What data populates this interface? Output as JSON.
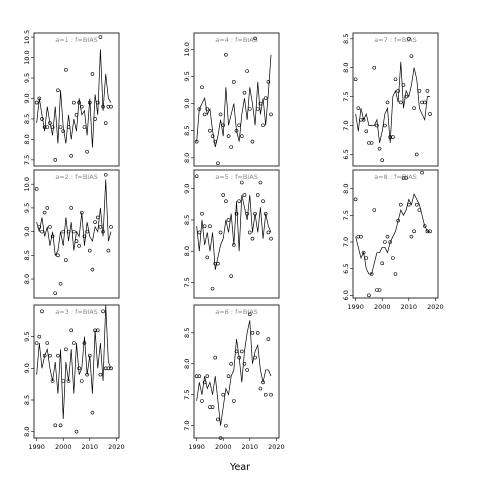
{
  "figure": {
    "xlabel": "Year"
  },
  "chart_data": [
    {
      "type": "scatter",
      "title": "a=1 : f=BIAS",
      "xlim": [
        1989,
        2021
      ],
      "ylim": [
        7.35,
        10.6
      ],
      "x_ticks": [
        1990,
        2000,
        2010,
        2020
      ],
      "y_ticks": [
        "7.5",
        "8.0",
        "8.5",
        "9.0",
        "9.5",
        "10.0",
        "10.5"
      ],
      "x": [
        1990,
        1991,
        1992,
        1993,
        1994,
        1995,
        1996,
        1997,
        1998,
        1999,
        2000,
        2001,
        2002,
        2003,
        2004,
        2005,
        2006,
        2007,
        2008,
        2009,
        2010,
        2011,
        2012,
        2013,
        2014,
        2015,
        2016,
        2017,
        2018
      ],
      "points": [
        8.9,
        9.0,
        8.5,
        8.3,
        8.3,
        8.4,
        8.3,
        7.5,
        9.2,
        8.3,
        8.2,
        9.7,
        8.3,
        7.6,
        8.9,
        8.6,
        8.9,
        8.8,
        8.3,
        7.7,
        8.9,
        9.6,
        8.5,
        8.9,
        10.5,
        8.8,
        8.4,
        8.8,
        8.8
      ],
      "line": [
        8.4,
        9.0,
        8.6,
        8.2,
        8.8,
        8.4,
        8.1,
        8.8,
        7.9,
        9.2,
        8.3,
        7.9,
        8.6,
        8.0,
        8.5,
        8.2,
        9.0,
        8.6,
        8.7,
        8.1,
        9.0,
        7.8,
        9.1,
        8.6,
        10.2,
        8.7,
        9.6,
        9.0,
        8.9
      ]
    },
    {
      "type": "scatter",
      "title": "a=2 : f=BIAS",
      "xlim": [
        1989,
        2021
      ],
      "ylim": [
        7.6,
        10.3
      ],
      "x_ticks": [
        1990,
        2000,
        2010,
        2020
      ],
      "y_ticks": [
        "8.0",
        "8.5",
        "9.0",
        "9.5",
        "10.0"
      ],
      "x": [
        1990,
        1991,
        1992,
        1993,
        1994,
        1995,
        1996,
        1997,
        1998,
        1999,
        2000,
        2001,
        2002,
        2003,
        2004,
        2005,
        2006,
        2007,
        2008,
        2009,
        2010,
        2011,
        2012,
        2013,
        2014,
        2015,
        2016,
        2017,
        2018
      ],
      "points": [
        9.9,
        9.1,
        9.0,
        9.4,
        9.5,
        9.1,
        8.9,
        7.7,
        8.5,
        7.9,
        9.0,
        8.4,
        9.0,
        9.5,
        9.0,
        8.8,
        8.7,
        9.4,
        8.9,
        9.0,
        8.6,
        8.2,
        9.2,
        9.3,
        9.1,
        9.0,
        10.2,
        8.6,
        9.1
      ],
      "line": [
        9.2,
        9.0,
        9.3,
        8.9,
        9.1,
        8.7,
        9.0,
        8.5,
        8.6,
        9.0,
        8.7,
        9.3,
        8.8,
        9.2,
        8.6,
        9.0,
        8.9,
        9.4,
        8.7,
        9.2,
        8.9,
        8.8,
        9.1,
        9.0,
        9.5,
        8.9,
        10.1,
        8.8,
        9.0
      ]
    },
    {
      "type": "scatter",
      "title": "a=3 : f=BIAS",
      "xlim": [
        1989,
        2021
      ],
      "ylim": [
        7.9,
        10.0
      ],
      "x_ticks": [
        1990,
        2000,
        2010,
        2020
      ],
      "y_ticks": [
        "8.0",
        "8.5",
        "9.0",
        "9.5"
      ],
      "x": [
        1990,
        1991,
        1992,
        1993,
        1994,
        1995,
        1996,
        1997,
        1998,
        1999,
        2000,
        2001,
        2002,
        2003,
        2004,
        2005,
        2006,
        2007,
        2008,
        2009,
        2010,
        2011,
        2012,
        2013,
        2014,
        2015,
        2016,
        2017,
        2018
      ],
      "points": [
        9.4,
        9.5,
        9.9,
        9.2,
        9.4,
        9.2,
        8.8,
        8.1,
        9.2,
        8.1,
        8.8,
        9.3,
        8.8,
        9.6,
        9.4,
        8.0,
        9.0,
        8.8,
        9.4,
        8.9,
        9.2,
        8.3,
        9.6,
        9.6,
        8.9,
        9.9,
        9.0,
        9.0,
        9.0
      ],
      "line": [
        8.9,
        9.4,
        9.0,
        9.2,
        9.3,
        9.0,
        8.8,
        9.1,
        8.6,
        9.3,
        8.2,
        9.1,
        8.8,
        9.3,
        8.6,
        9.4,
        8.9,
        9.0,
        9.5,
        8.9,
        9.2,
        8.6,
        9.6,
        9.0,
        9.4,
        8.8,
        10.0,
        9.1,
        9.0
      ]
    },
    {
      "type": "scatter",
      "title": "a=4 : f=BIAS",
      "xlim": [
        1989,
        2021
      ],
      "ylim": [
        7.85,
        10.3
      ],
      "x_ticks": [
        1990,
        2000,
        2010,
        2020
      ],
      "y_ticks": [
        "8.0",
        "8.5",
        "9.0",
        "9.5",
        "10.0"
      ],
      "x": [
        1990,
        1991,
        1992,
        1993,
        1994,
        1995,
        1996,
        1997,
        1998,
        1999,
        2000,
        2001,
        2002,
        2003,
        2004,
        2005,
        2006,
        2007,
        2008,
        2009,
        2010,
        2011,
        2012,
        2013,
        2014,
        2015,
        2016,
        2017,
        2018
      ],
      "points": [
        8.3,
        8.9,
        9.3,
        8.8,
        8.9,
        8.5,
        8.4,
        8.3,
        7.9,
        8.8,
        8.6,
        9.9,
        8.4,
        8.2,
        9.4,
        8.5,
        8.6,
        8.4,
        9.2,
        9.6,
        8.9,
        8.3,
        10.2,
        8.9,
        9.0,
        8.6,
        9.1,
        9.4,
        8.8
      ],
      "line": [
        8.3,
        8.9,
        9.0,
        9.1,
        8.8,
        8.9,
        8.5,
        8.2,
        8.4,
        8.7,
        8.4,
        9.3,
        8.6,
        8.8,
        9.0,
        8.5,
        8.3,
        8.8,
        9.1,
        8.7,
        9.3,
        9.0,
        8.6,
        9.4,
        8.8,
        9.1,
        8.6,
        9.2,
        9.9
      ]
    },
    {
      "type": "scatter",
      "title": "a=5 : f=BIAS",
      "xlim": [
        1989,
        2021
      ],
      "ylim": [
        7.25,
        9.3
      ],
      "x_ticks": [
        1990,
        2000,
        2010,
        2020
      ],
      "y_ticks": [
        "7.5",
        "8.0",
        "8.5",
        "9.0"
      ],
      "x": [
        1990,
        1991,
        1992,
        1993,
        1994,
        1995,
        1996,
        1997,
        1998,
        1999,
        2000,
        2001,
        2002,
        2003,
        2004,
        2005,
        2006,
        2007,
        2008,
        2009,
        2010,
        2011,
        2012,
        2013,
        2014,
        2015,
        2016,
        2017,
        2018
      ],
      "points": [
        9.2,
        8.3,
        8.6,
        8.4,
        7.9,
        8.4,
        7.4,
        7.8,
        7.8,
        8.3,
        8.9,
        8.8,
        8.5,
        7.6,
        8.1,
        8.6,
        8.8,
        9.1,
        8.9,
        8.6,
        8.3,
        8.2,
        8.6,
        8.9,
        9.1,
        8.8,
        8.6,
        8.3,
        8.2
      ],
      "line": [
        8.4,
        8.0,
        8.5,
        8.1,
        8.3,
        8.0,
        8.3,
        7.7,
        7.9,
        8.1,
        8.2,
        8.5,
        8.3,
        8.6,
        8.1,
        8.8,
        8.0,
        8.9,
        8.7,
        8.5,
        8.9,
        8.3,
        8.6,
        8.3,
        8.7,
        8.2,
        8.6,
        8.4,
        8.3
      ]
    },
    {
      "type": "scatter",
      "title": "a=6 : f=BIAS",
      "xlim": [
        1989,
        2021
      ],
      "ylim": [
        6.8,
        8.95
      ],
      "x_ticks": [
        1990,
        2000,
        2010,
        2020
      ],
      "y_ticks": [
        "7.0",
        "7.5",
        "8.0",
        "8.5"
      ],
      "x": [
        1990,
        1991,
        1992,
        1993,
        1994,
        1995,
        1996,
        1997,
        1998,
        1999,
        2000,
        2001,
        2002,
        2003,
        2004,
        2005,
        2006,
        2007,
        2008,
        2009,
        2010,
        2011,
        2012,
        2013,
        2014,
        2015,
        2016,
        2017,
        2018
      ],
      "points": [
        7.8,
        7.8,
        7.4,
        7.7,
        7.8,
        7.3,
        7.3,
        8.1,
        7.1,
        6.8,
        7.5,
        7.0,
        7.8,
        8.0,
        7.4,
        8.2,
        8.1,
        8.2,
        8.0,
        7.9,
        8.8,
        8.5,
        8.1,
        8.5,
        7.6,
        7.7,
        7.5,
        8.4,
        7.5
      ],
      "line": [
        7.4,
        7.7,
        7.5,
        7.8,
        7.6,
        7.7,
        7.5,
        7.8,
        7.4,
        7.0,
        7.3,
        7.6,
        7.5,
        7.8,
        7.9,
        8.4,
        8.1,
        7.7,
        8.2,
        8.5,
        8.7,
        8.0,
        8.2,
        8.3,
        7.9,
        7.7,
        7.9,
        7.9,
        7.8
      ]
    },
    {
      "type": "scatter",
      "title": "a=7 : f=BIAS",
      "xlim": [
        1989,
        2021
      ],
      "ylim": [
        6.3,
        8.6
      ],
      "x_ticks": [
        1990,
        2000,
        2010,
        2020
      ],
      "y_ticks": [
        "6.5",
        "7.0",
        "7.5",
        "8.0",
        "8.5"
      ],
      "x": [
        1990,
        1991,
        1992,
        1993,
        1994,
        1995,
        1996,
        1997,
        1998,
        1999,
        2000,
        2001,
        2002,
        2003,
        2004,
        2005,
        2006,
        2007,
        2008,
        2009,
        2010,
        2011,
        2012,
        2013,
        2014,
        2015,
        2016,
        2017,
        2018
      ],
      "points": [
        7.8,
        7.3,
        7.1,
        7.1,
        6.9,
        6.7,
        6.7,
        8.0,
        7.0,
        6.6,
        6.4,
        7.0,
        7.4,
        6.8,
        6.8,
        7.8,
        7.6,
        7.4,
        7.7,
        7.5,
        8.5,
        8.2,
        7.3,
        6.5,
        7.6,
        7.4,
        7.4,
        7.6,
        7.2
      ],
      "line": [
        7.2,
        6.9,
        7.3,
        7.1,
        7.2,
        7.0,
        7.0,
        7.0,
        7.1,
        6.7,
        6.9,
        7.2,
        7.3,
        6.7,
        7.5,
        7.6,
        7.4,
        8.1,
        7.3,
        7.6,
        7.5,
        7.7,
        8.0,
        7.8,
        7.3,
        7.2,
        7.1,
        7.5,
        7.5
      ]
    },
    {
      "type": "scatter",
      "title": "a=8 : f=BIAS",
      "xlim": [
        1989,
        2021
      ],
      "ylim": [
        5.95,
        8.35
      ],
      "x_ticks": [
        1990,
        2000,
        2010,
        2020
      ],
      "y_ticks": [
        "6.0",
        "6.5",
        "7.0",
        "7.5",
        "8.0"
      ],
      "x": [
        1990,
        1991,
        1992,
        1993,
        1994,
        1995,
        1996,
        1997,
        1998,
        1999,
        2000,
        2001,
        2002,
        2003,
        2004,
        2005,
        2006,
        2007,
        2008,
        2009,
        2010,
        2011,
        2012,
        2013,
        2014,
        2015,
        2016,
        2017,
        2018
      ],
      "points": [
        7.8,
        7.1,
        7.1,
        6.8,
        6.7,
        6.0,
        6.4,
        7.6,
        6.1,
        6.1,
        6.6,
        7.0,
        7.1,
        7.0,
        6.7,
        6.4,
        7.4,
        7.7,
        8.2,
        8.2,
        7.7,
        7.1,
        7.2,
        7.7,
        7.6,
        8.3,
        7.3,
        7.2,
        7.2
      ],
      "line": [
        7.1,
        6.9,
        6.7,
        6.8,
        6.5,
        6.4,
        6.4,
        6.6,
        6.8,
        6.8,
        6.9,
        6.9,
        6.8,
        7.0,
        7.1,
        7.2,
        7.4,
        7.6,
        7.5,
        7.6,
        7.8,
        7.7,
        7.9,
        7.8,
        7.7,
        7.5,
        7.3,
        7.2,
        7.2
      ]
    }
  ]
}
